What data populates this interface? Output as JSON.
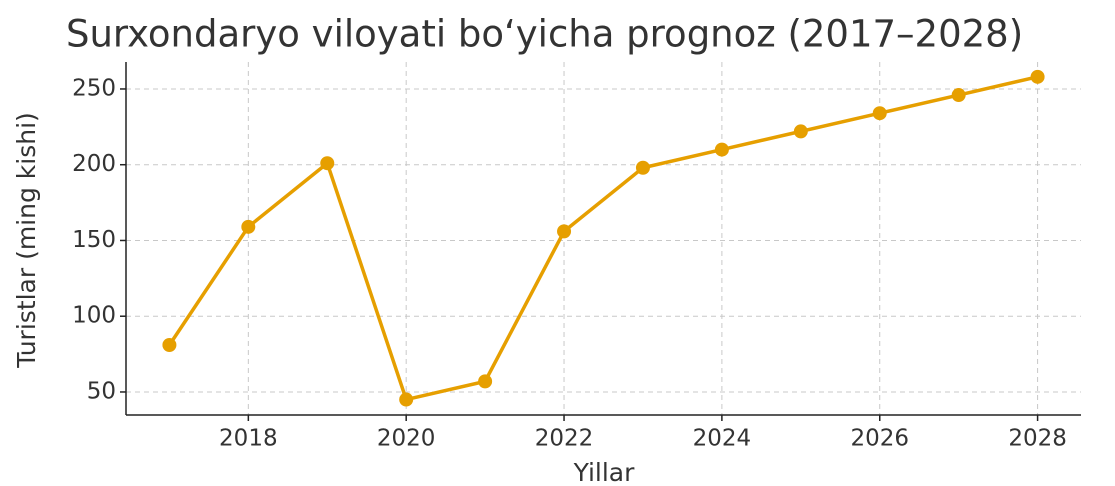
{
  "chart_data": {
    "type": "line",
    "title": "Surxondaryo viloyati bo‘yicha prognoz (2017–2028)",
    "xlabel": "Yillar",
    "ylabel": "Turistlar (ming kishi)",
    "x": [
      2017,
      2018,
      2019,
      2020,
      2021,
      2022,
      2023,
      2024,
      2025,
      2026,
      2027,
      2028
    ],
    "values": [
      81,
      159,
      201,
      45,
      57,
      156,
      198,
      210,
      222,
      234,
      246,
      258
    ],
    "color": "#e69f00",
    "xlim": [
      2016.45,
      2028.55
    ],
    "xticks": [
      2018,
      2020,
      2022,
      2024,
      2026,
      2028
    ],
    "ylim": [
      34.8,
      267.8
    ],
    "yticks": [
      50,
      100,
      150,
      200,
      250
    ],
    "grid": true
  }
}
